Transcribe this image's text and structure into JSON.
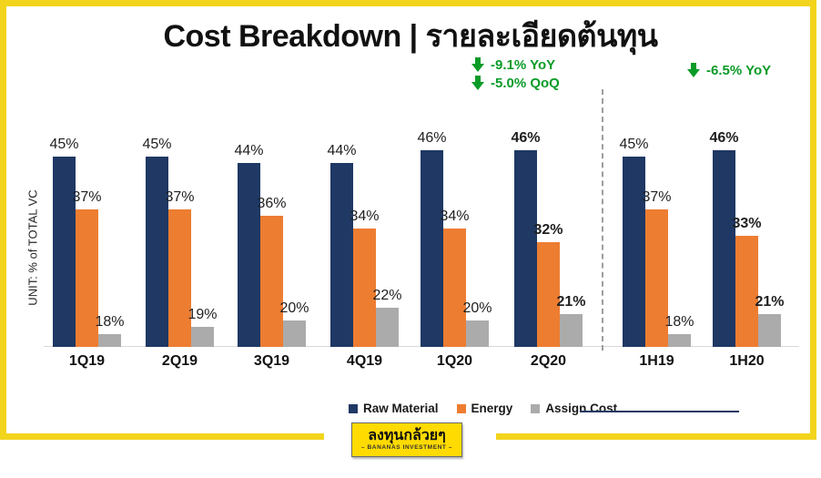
{
  "title": "Cost Breakdown | รายละเอียดต้นทุน",
  "annotations": {
    "quarterly": {
      "lines": [
        "-9.1% YoY",
        "-5.0% QoQ"
      ]
    },
    "half_year": {
      "lines": [
        "-6.5% YoY"
      ]
    }
  },
  "chart_data": {
    "type": "bar",
    "title": "Cost Breakdown | รายละเอียดต้นทุน",
    "ylabel": "UNIT: % of TOTAL VC",
    "categories": [
      "1Q19",
      "2Q19",
      "3Q19",
      "4Q19",
      "1Q20",
      "2Q20",
      "1H19",
      "1H20"
    ],
    "series": [
      {
        "name": "Raw Material",
        "color": "#1F3864",
        "values": [
          45,
          45,
          44,
          44,
          46,
          46,
          45,
          46
        ]
      },
      {
        "name": "Energy",
        "color": "#ED7D31",
        "values": [
          37,
          37,
          36,
          34,
          34,
          32,
          37,
          33
        ]
      },
      {
        "name": "Assign Cost",
        "color": "#ABABAB",
        "values": [
          18,
          19,
          20,
          22,
          20,
          21,
          18,
          21
        ]
      }
    ],
    "value_suffix": "%",
    "emphasized_categories": [
      "2Q20",
      "1H20"
    ],
    "axis": {
      "min_percent": 16,
      "gridlines": false
    },
    "legend_position": "bottom",
    "group_separator_after": "2Q20"
  },
  "badge": {
    "title": "ลงทุนกล้วยๆ",
    "subtitle": "–  BANANAS INVESTMENT  –"
  },
  "colors": {
    "frame_yellow": "#F2D41D",
    "badge_yellow": "#FFDB00",
    "annotation_green": "#0A9B27",
    "note_line_navy": "#1F3864",
    "raw_material": "#1F3864",
    "energy": "#ED7D31",
    "assign_cost": "#ABABAB"
  }
}
